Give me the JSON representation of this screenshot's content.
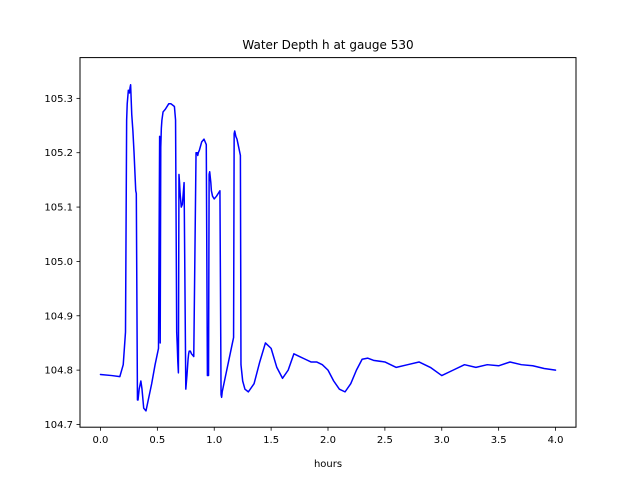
{
  "chart_data": {
    "type": "line",
    "title": "Water Depth h at gauge 530",
    "xlabel": "hours",
    "ylabel": "",
    "xlim": [
      -0.18,
      4.18
    ],
    "ylim": [
      104.695,
      105.375
    ],
    "xticks": [
      0.0,
      0.5,
      1.0,
      1.5,
      2.0,
      2.5,
      3.0,
      3.5,
      4.0
    ],
    "xtick_labels": [
      "0.0",
      "0.5",
      "1.0",
      "1.5",
      "2.0",
      "2.5",
      "3.0",
      "3.5",
      "4.0"
    ],
    "yticks": [
      104.7,
      104.8,
      104.9,
      105.0,
      105.1,
      105.2,
      105.3
    ],
    "ytick_labels": [
      "104.7",
      "104.8",
      "104.9",
      "105.0",
      "105.1",
      "105.2",
      "105.3"
    ],
    "grid": false,
    "color": "#0000ff",
    "series": [
      {
        "name": "",
        "x": [
          0.0,
          0.1,
          0.17,
          0.2,
          0.22,
          0.23,
          0.235,
          0.245,
          0.255,
          0.26,
          0.265,
          0.275,
          0.285,
          0.295,
          0.31,
          0.315,
          0.325,
          0.33,
          0.34,
          0.355,
          0.365,
          0.38,
          0.4,
          0.42,
          0.45,
          0.48,
          0.51,
          0.52,
          0.525,
          0.53,
          0.535,
          0.54,
          0.55,
          0.57,
          0.6,
          0.62,
          0.65,
          0.66,
          0.67,
          0.675,
          0.68,
          0.685,
          0.69,
          0.695,
          0.7,
          0.71,
          0.72,
          0.735,
          0.75,
          0.76,
          0.77,
          0.775,
          0.78,
          0.79,
          0.8,
          0.82,
          0.84,
          0.85,
          0.855,
          0.86,
          0.87,
          0.89,
          0.91,
          0.93,
          0.94,
          0.95,
          0.955,
          0.96,
          0.965,
          0.97,
          0.975,
          0.985,
          1.0,
          1.02,
          1.05,
          1.06,
          1.065,
          1.07,
          1.09,
          1.11,
          1.14,
          1.16,
          1.17,
          1.175,
          1.18,
          1.19,
          1.2,
          1.21,
          1.22,
          1.23,
          1.235,
          1.24,
          1.25,
          1.27,
          1.3,
          1.35,
          1.4,
          1.45,
          1.5,
          1.55,
          1.6,
          1.65,
          1.7,
          1.75,
          1.8,
          1.85,
          1.9,
          1.95,
          2.0,
          2.05,
          2.1,
          2.15,
          2.2,
          2.25,
          2.3,
          2.35,
          2.4,
          2.5,
          2.6,
          2.7,
          2.8,
          2.9,
          3.0,
          3.1,
          3.2,
          3.3,
          3.4,
          3.5,
          3.6,
          3.7,
          3.8,
          3.9,
          4.0
        ],
        "y": [
          104.792,
          104.79,
          104.788,
          104.81,
          104.87,
          105.26,
          105.29,
          105.315,
          105.31,
          105.32,
          105.325,
          105.27,
          105.24,
          105.2,
          105.13,
          105.125,
          104.745,
          104.745,
          104.765,
          104.78,
          104.765,
          104.73,
          104.725,
          104.745,
          104.775,
          104.81,
          104.84,
          105.23,
          104.85,
          105.21,
          105.245,
          105.26,
          105.275,
          105.28,
          105.29,
          105.29,
          105.285,
          105.26,
          104.87,
          104.845,
          104.815,
          104.795,
          105.16,
          105.145,
          105.125,
          105.1,
          105.105,
          105.145,
          104.765,
          104.79,
          104.82,
          104.83,
          104.835,
          104.835,
          104.83,
          104.825,
          105.2,
          105.2,
          105.195,
          105.2,
          105.205,
          105.22,
          105.225,
          105.215,
          104.79,
          104.79,
          105.16,
          105.165,
          105.155,
          105.145,
          105.13,
          105.12,
          105.115,
          105.12,
          105.13,
          104.755,
          104.75,
          104.76,
          104.78,
          104.8,
          104.83,
          104.85,
          104.86,
          105.235,
          105.24,
          105.23,
          105.225,
          105.215,
          105.205,
          105.195,
          104.81,
          104.8,
          104.78,
          104.765,
          104.76,
          104.775,
          104.815,
          104.85,
          104.84,
          104.805,
          104.785,
          104.8,
          104.83,
          104.825,
          104.82,
          104.815,
          104.815,
          104.81,
          104.8,
          104.78,
          104.765,
          104.76,
          104.775,
          104.8,
          104.82,
          104.822,
          104.818,
          104.815,
          104.805,
          104.81,
          104.815,
          104.805,
          104.79,
          104.8,
          104.81,
          104.805,
          104.81,
          104.808,
          104.815,
          104.81,
          104.808,
          104.803,
          104.8
        ]
      }
    ]
  }
}
